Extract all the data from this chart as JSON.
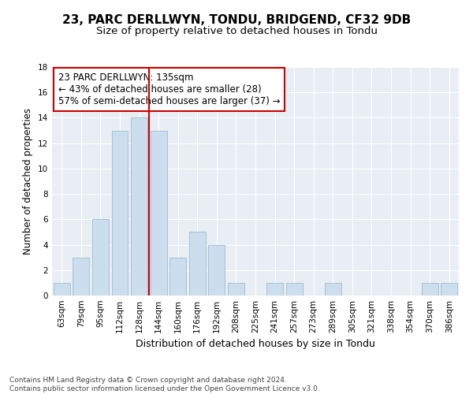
{
  "title": "23, PARC DERLLWYN, TONDU, BRIDGEND, CF32 9DB",
  "subtitle": "Size of property relative to detached houses in Tondu",
  "xlabel": "Distribution of detached houses by size in Tondu",
  "ylabel": "Number of detached properties",
  "categories": [
    "63sqm",
    "79sqm",
    "95sqm",
    "112sqm",
    "128sqm",
    "144sqm",
    "160sqm",
    "176sqm",
    "192sqm",
    "208sqm",
    "225sqm",
    "241sqm",
    "257sqm",
    "273sqm",
    "289sqm",
    "305sqm",
    "321sqm",
    "338sqm",
    "354sqm",
    "370sqm",
    "386sqm"
  ],
  "values": [
    1,
    3,
    6,
    13,
    14,
    13,
    3,
    5,
    4,
    1,
    0,
    1,
    1,
    0,
    1,
    0,
    0,
    0,
    0,
    1,
    1
  ],
  "bar_color": "#ccdded",
  "bar_edge_color": "#9bbdd4",
  "vline_color": "#cc0000",
  "vline_x": 4.5,
  "annotation_text": "23 PARC DERLLWYN: 135sqm\n← 43% of detached houses are smaller (28)\n57% of semi-detached houses are larger (37) →",
  "annotation_box_color": "#ffffff",
  "annotation_box_edge": "#cc0000",
  "ylim": [
    0,
    18
  ],
  "yticks": [
    0,
    2,
    4,
    6,
    8,
    10,
    12,
    14,
    16,
    18
  ],
  "footer_text": "Contains HM Land Registry data © Crown copyright and database right 2024.\nContains public sector information licensed under the Open Government Licence v3.0.",
  "title_fontsize": 11,
  "subtitle_fontsize": 9.5,
  "xlabel_fontsize": 9,
  "ylabel_fontsize": 8.5,
  "tick_fontsize": 7.5,
  "footer_fontsize": 6.5,
  "annotation_fontsize": 8.5,
  "bg_color": "#ffffff",
  "plot_bg_color": "#e8eef4"
}
